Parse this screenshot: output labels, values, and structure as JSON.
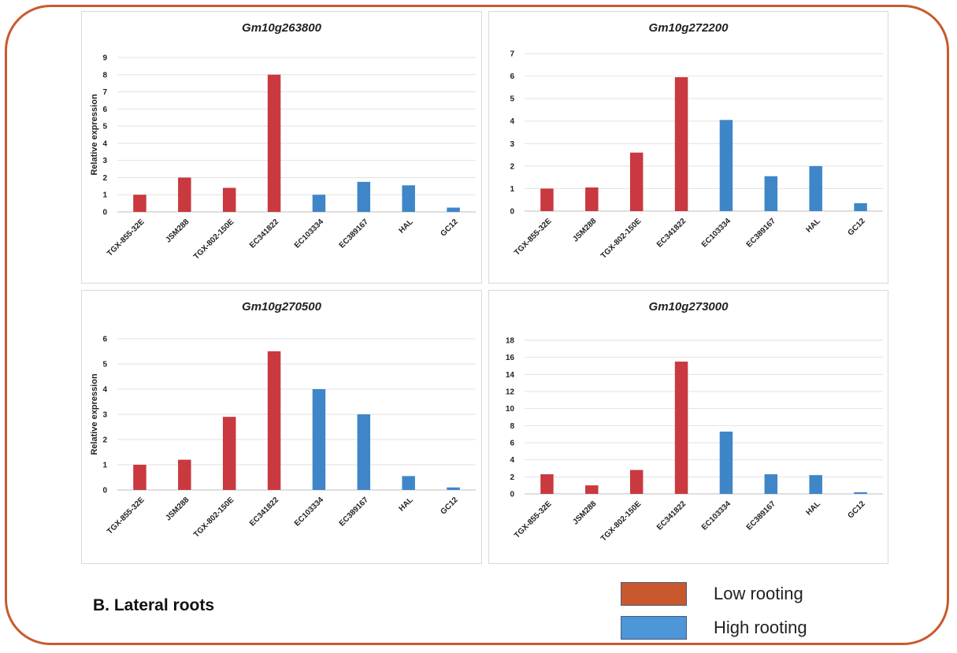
{
  "colors": {
    "low": "#c9393f",
    "high": "#3f86c8",
    "legend_low": "#c9582d",
    "legend_high": "#4d96d8",
    "frame": "#c75a2e"
  },
  "section_label": "B.  Lateral roots",
  "legend": {
    "low_label": "Low rooting",
    "high_label": "High rooting"
  },
  "chart_data": [
    {
      "type": "bar",
      "title": "Gm10g263800",
      "ylabel": "Relative expression",
      "categories": [
        "TGX-855-32E",
        "JSM288",
        "TGX-802-150E",
        "EC341822",
        "EC103334",
        "EC389167",
        "HAL",
        "GC12"
      ],
      "groups": [
        "low",
        "low",
        "low",
        "low",
        "high",
        "high",
        "high",
        "high"
      ],
      "values": [
        1.0,
        2.0,
        1.4,
        8.0,
        1.0,
        1.75,
        1.55,
        0.25
      ],
      "ylim": [
        0,
        9
      ],
      "yticks": [
        0,
        1,
        2,
        3,
        4,
        5,
        6,
        7,
        8,
        9
      ],
      "grid": true
    },
    {
      "type": "bar",
      "title": "Gm10g272200",
      "ylabel": "",
      "categories": [
        "TGX-855-32E",
        "JSM288",
        "TGX-802-150E",
        "EC341822",
        "EC103334",
        "EC389167",
        "HAL",
        "GC12"
      ],
      "groups": [
        "low",
        "low",
        "low",
        "low",
        "high",
        "high",
        "high",
        "high"
      ],
      "values": [
        1.0,
        1.05,
        2.6,
        5.95,
        4.05,
        1.55,
        2.0,
        0.35
      ],
      "ylim": [
        0,
        7
      ],
      "yticks": [
        0,
        1,
        2,
        3,
        4,
        5,
        6,
        7
      ],
      "grid": true
    },
    {
      "type": "bar",
      "title": "Gm10g270500",
      "ylabel": "Relative expression",
      "categories": [
        "TGX-855-32E",
        "JSM288",
        "TGX-802-150E",
        "EC341822",
        "EC103334",
        "EC389167",
        "HAL",
        "GC12"
      ],
      "groups": [
        "low",
        "low",
        "low",
        "low",
        "high",
        "high",
        "high",
        "high"
      ],
      "values": [
        1.0,
        1.2,
        2.9,
        5.5,
        4.0,
        3.0,
        0.55,
        0.1
      ],
      "ylim": [
        0,
        6
      ],
      "yticks": [
        0,
        1,
        2,
        3,
        4,
        5,
        6
      ],
      "grid": true
    },
    {
      "type": "bar",
      "title": "Gm10g273000",
      "ylabel": "",
      "categories": [
        "TGX-855-32E",
        "JSM288",
        "TGX-802-150E",
        "EC341822",
        "EC103334",
        "EC389167",
        "HAL",
        "GC12"
      ],
      "groups": [
        "low",
        "low",
        "low",
        "low",
        "high",
        "high",
        "high",
        "high"
      ],
      "values": [
        2.3,
        1.0,
        2.8,
        15.5,
        7.3,
        2.3,
        2.2,
        0.2
      ],
      "ylim": [
        0,
        18
      ],
      "yticks": [
        0,
        2,
        4,
        6,
        8,
        10,
        12,
        14,
        16,
        18
      ],
      "grid": true
    }
  ]
}
